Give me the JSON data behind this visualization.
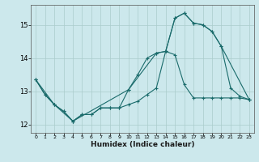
{
  "title": "",
  "xlabel": "Humidex (Indice chaleur)",
  "bg_color": "#cce8ec",
  "line_color": "#1a6b6b",
  "grid_color": "#aacccc",
  "xlim": [
    -0.5,
    23.5
  ],
  "ylim": [
    11.75,
    15.6
  ],
  "yticks": [
    12,
    13,
    14,
    15
  ],
  "xticks": [
    0,
    1,
    2,
    3,
    4,
    5,
    6,
    7,
    8,
    9,
    10,
    11,
    12,
    13,
    14,
    15,
    16,
    17,
    18,
    19,
    20,
    21,
    22,
    23
  ],
  "series1_x": [
    0,
    1,
    2,
    3,
    4,
    5,
    6,
    7,
    8,
    9,
    10,
    11,
    12,
    13,
    14,
    15,
    16,
    17,
    18,
    19,
    20,
    21,
    22,
    23
  ],
  "series1_y": [
    13.35,
    12.9,
    12.6,
    12.4,
    12.1,
    12.3,
    12.3,
    12.5,
    12.5,
    12.5,
    12.6,
    12.7,
    12.9,
    13.1,
    14.2,
    14.1,
    13.2,
    12.8,
    12.8,
    12.8,
    12.8,
    12.8,
    12.8,
    12.75
  ],
  "series2_x": [
    0,
    1,
    2,
    3,
    4,
    5,
    6,
    7,
    8,
    9,
    10,
    11,
    12,
    13,
    14,
    15,
    16,
    17,
    18,
    19,
    20,
    21,
    22,
    23
  ],
  "series2_y": [
    13.35,
    12.9,
    12.6,
    12.4,
    12.1,
    12.3,
    12.3,
    12.5,
    12.5,
    12.5,
    13.05,
    13.5,
    14.0,
    14.15,
    14.2,
    15.2,
    15.35,
    15.05,
    15.0,
    14.8,
    14.35,
    13.1,
    12.85,
    12.75
  ],
  "series3_x": [
    0,
    2,
    4,
    10,
    13,
    14,
    15,
    16,
    17,
    18,
    19,
    20,
    23
  ],
  "series3_y": [
    13.35,
    12.6,
    12.1,
    13.05,
    14.15,
    14.2,
    15.2,
    15.35,
    15.05,
    15.0,
    14.8,
    14.35,
    12.75
  ]
}
